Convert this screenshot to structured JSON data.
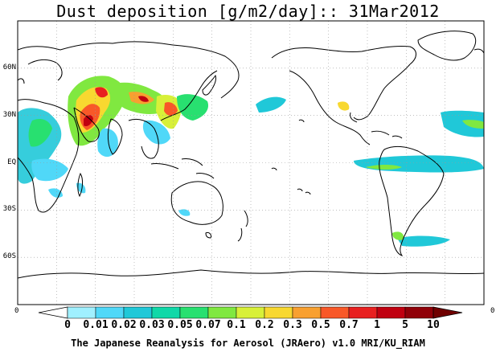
{
  "title": "Dust deposition [g/m2/day]:: 31Mar2012",
  "map": {
    "lat_labels": [
      {
        "text": "60N",
        "lat": 60
      },
      {
        "text": "30N",
        "lat": 30
      },
      {
        "text": "EQ",
        "lat": 0
      },
      {
        "text": "30S",
        "lat": -30
      },
      {
        "text": "60S",
        "lat": -60
      }
    ],
    "edge_labels": {
      "left": "0",
      "right": "0"
    },
    "land_color": "#ffffff",
    "coast_color": "#000000",
    "grid_style": "dotted"
  },
  "colorbar": {
    "levels": [
      "0",
      "0.01",
      "0.02",
      "0.03",
      "0.05",
      "0.07",
      "0.1",
      "0.2",
      "0.3",
      "0.5",
      "0.7",
      "1",
      "5",
      "10"
    ],
    "colors": [
      "#ffffff",
      "#a0f0ff",
      "#50d8f8",
      "#20c8d8",
      "#10d8a8",
      "#28e070",
      "#80e840",
      "#d8f038",
      "#f8d830",
      "#f8a030",
      "#f85828",
      "#e82020",
      "#c00010",
      "#900008",
      "#700000"
    ]
  },
  "footer": "The Japanese Reanalysis for Aerosol (JRAero) v1.0 MRI/KU_RIAM"
}
